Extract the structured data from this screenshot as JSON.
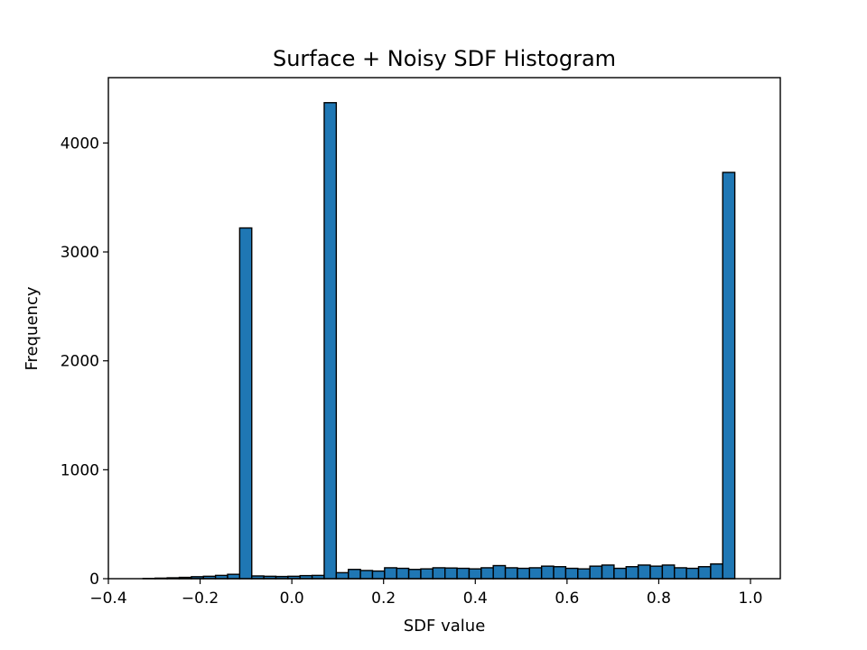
{
  "chart_data": {
    "type": "bar",
    "title": "Surface + Noisy SDF Histogram",
    "xlabel": "SDF value",
    "ylabel": "Frequency",
    "xlim": [
      -0.4,
      1.065
    ],
    "ylim": [
      0,
      4600
    ],
    "xticks": [
      -0.4,
      -0.2,
      0.0,
      0.2,
      0.4,
      0.6,
      0.8,
      1.0
    ],
    "xtick_labels": [
      "−0.4",
      "−0.2",
      "0.0",
      "0.2",
      "0.4",
      "0.6",
      "0.8",
      "1.0"
    ],
    "yticks": [
      0,
      1000,
      2000,
      3000,
      4000
    ],
    "ytick_labels": [
      "0",
      "1000",
      "2000",
      "3000",
      "4000"
    ],
    "grid": false,
    "bin_start": -0.3507,
    "bin_width": 0.02633,
    "values": [
      0,
      2,
      5,
      8,
      12,
      18,
      22,
      30,
      40,
      3220,
      25,
      22,
      20,
      22,
      28,
      30,
      4370,
      55,
      85,
      75,
      70,
      100,
      95,
      85,
      90,
      100,
      98,
      95,
      90,
      100,
      120,
      100,
      95,
      100,
      115,
      110,
      95,
      90,
      115,
      125,
      95,
      110,
      125,
      115,
      125,
      100,
      95,
      110,
      135,
      3730
    ],
    "bar_color": "#1f77b4",
    "edge_color": "#000000"
  }
}
